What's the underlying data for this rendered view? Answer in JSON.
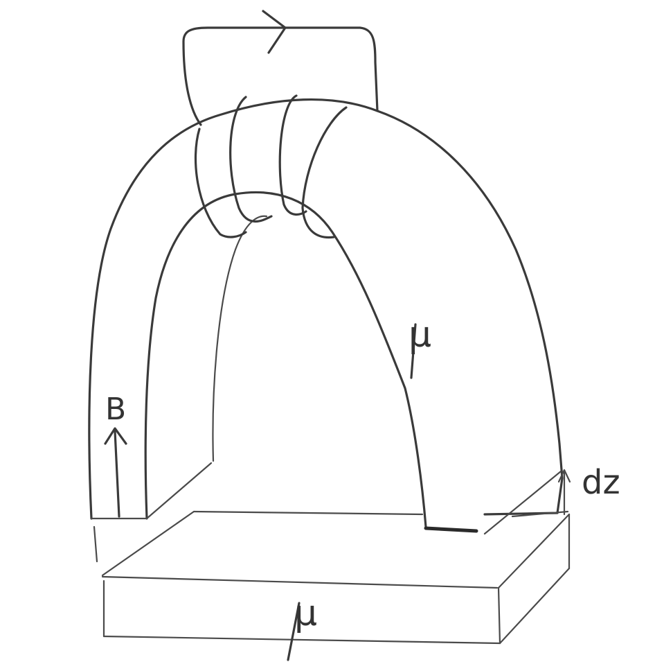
{
  "labels": {
    "field": "B",
    "permeability_arch": "μ",
    "permeability_base": "μ",
    "thickness": "dz"
  }
}
